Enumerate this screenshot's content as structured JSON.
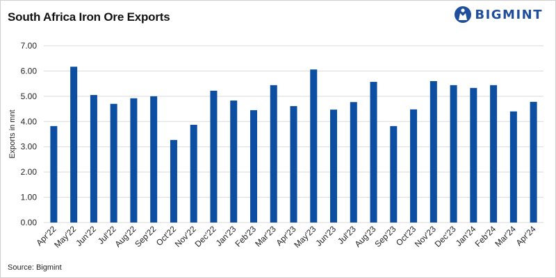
{
  "title": "South Africa Iron Ore Exports",
  "logo": {
    "text": "BIGMINT",
    "icon": "bigmint-logo-icon",
    "color": "#1f4e9c"
  },
  "source": "Source: Bigmint",
  "chart_data": {
    "type": "bar",
    "categories": [
      "Apr'22",
      "May'22",
      "Jun'22",
      "Jul'22",
      "Aug'22",
      "Sep'22",
      "Oct'22",
      "Nov'22",
      "Dec'22",
      "Jan'23",
      "Feb'23",
      "Mar'23",
      "Apr'23",
      "May'23",
      "Jun'23",
      "Jul'23",
      "Aug'23",
      "Sep'23",
      "Oct'23",
      "Nov'23",
      "Dec'23",
      "Jan'24",
      "Feb'24",
      "Mar'24",
      "Apr'24"
    ],
    "series": [
      {
        "values": [
          3.82,
          6.17,
          5.05,
          4.7,
          4.92,
          5.0,
          3.27,
          3.87,
          5.22,
          4.83,
          4.45,
          5.44,
          4.61,
          6.06,
          4.47,
          4.77,
          5.57,
          3.82,
          4.48,
          5.6,
          5.44,
          5.33,
          5.44,
          4.4,
          4.78
        ],
        "color": "#0b4ea2"
      }
    ],
    "ylabel": "Exports in mnt",
    "xlabel": "",
    "ylim": [
      0,
      7
    ],
    "yticks": [
      "0.00",
      "1.00",
      "2.00",
      "3.00",
      "4.00",
      "5.00",
      "6.00",
      "7.00"
    ],
    "grid": true,
    "legend": "none"
  }
}
